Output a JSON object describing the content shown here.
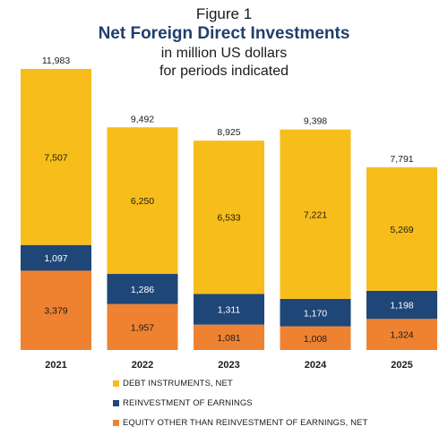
{
  "figure": {
    "label": "Figure 1",
    "title": "Net Foreign Direct Investments",
    "subtitle_lines": [
      "in million US dollars",
      "for periods indicated"
    ]
  },
  "colors": {
    "debt": "#f7bd1a",
    "reinvestment": "#1e4677",
    "equity": "#ef8231",
    "dark_label": "#1b1b1b",
    "light_label": "#ffffff"
  },
  "chart_data": {
    "type": "bar",
    "stacked": true,
    "categories": [
      "2021",
      "2022",
      "2023",
      "2024",
      "2025"
    ],
    "series": [
      {
        "name": "EQUITY OTHER THAN REINVESTMENT OF EARNINGS, NET",
        "values": [
          3379,
          1957,
          1081,
          1008,
          1324
        ]
      },
      {
        "name": "REINVESTMENT OF EARNINGS",
        "values": [
          1097,
          1286,
          1311,
          1170,
          1198
        ]
      },
      {
        "name": "DEBT INSTRUMENTS, NET",
        "values": [
          7507,
          6250,
          6533,
          7221,
          5269
        ]
      }
    ],
    "totals": [
      11983,
      9492,
      8925,
      9398,
      7791
    ],
    "value_labels": [
      [
        "3,379",
        "1,957",
        "1,081",
        "1,008",
        "1,324"
      ],
      [
        "1,097",
        "1,286",
        "1,311",
        "1,170",
        "1,198"
      ],
      [
        "7,507",
        "6,250",
        "6,533",
        "7,221",
        "5,269"
      ]
    ],
    "total_labels": [
      "11,983",
      "9,492",
      "8,925",
      "9,398",
      "7,791"
    ],
    "title": "Net Foreign Direct Investments",
    "xlabel": "",
    "ylabel": "",
    "ylim": [
      0,
      12000
    ],
    "grid": false,
    "legend_position": "bottom"
  },
  "legend": {
    "items": [
      {
        "label": "DEBT INSTRUMENTS, NET",
        "color": "#f7bd1a"
      },
      {
        "label": "REINVESTMENT OF EARNINGS",
        "color": "#1e4677"
      },
      {
        "label": "EQUITY OTHER THAN REINVESTMENT OF EARNINGS, NET",
        "color": "#ef8231"
      }
    ]
  }
}
